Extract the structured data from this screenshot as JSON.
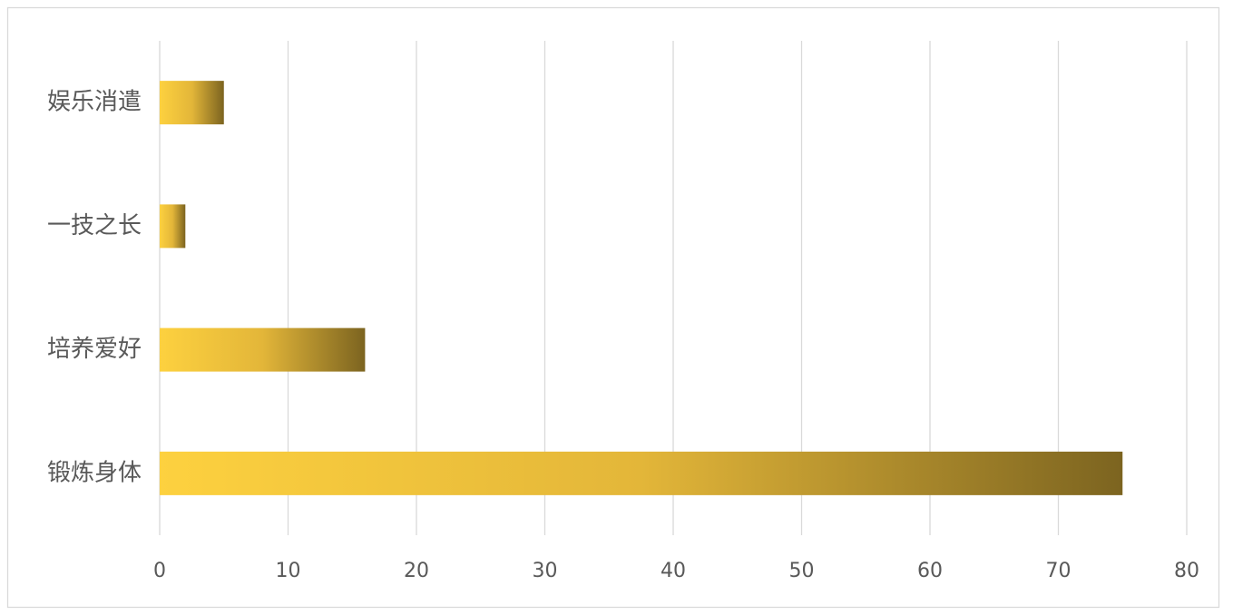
{
  "chart_data": {
    "type": "hbar",
    "categories": [
      "锻炼身体",
      "培养爱好",
      "一技之长",
      "娱乐消遣"
    ],
    "values": [
      75,
      16,
      2,
      5
    ],
    "gradient": [
      "#fdd13f",
      "#e3b639",
      "#7c6420"
    ],
    "xlim": [
      0,
      80
    ],
    "xticks": [
      0,
      10,
      20,
      30,
      40,
      50,
      60,
      70,
      80
    ],
    "grid": true
  }
}
